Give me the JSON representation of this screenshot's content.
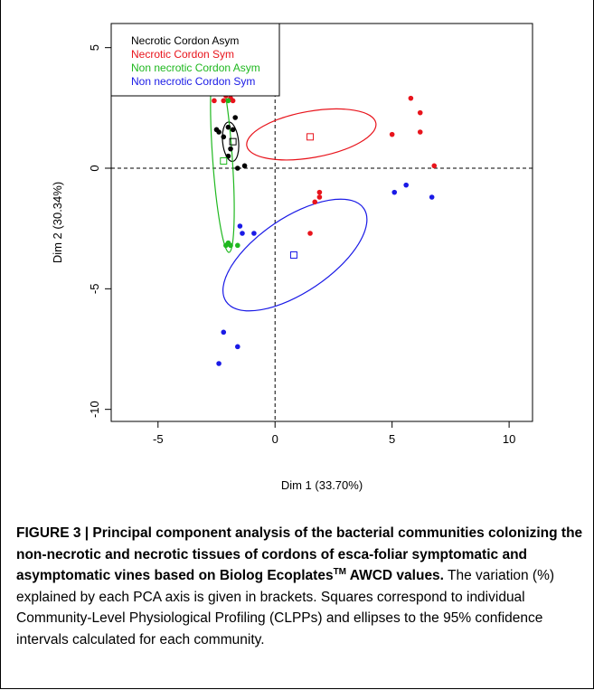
{
  "chart_data": {
    "type": "scatter",
    "title": "",
    "xlabel": "Dim 1 (33.70%)",
    "ylabel": "Dim 2 (30.34%)",
    "xlim": [
      -7,
      11
    ],
    "ylim": [
      -10.5,
      6
    ],
    "xticks": [
      -5,
      0,
      5,
      10
    ],
    "yticks": [
      5,
      0,
      -5,
      -10
    ],
    "tick_labels_x": [
      "-5",
      "0",
      "5",
      "10"
    ],
    "tick_labels_y": [
      "5",
      "0",
      "-5",
      "-10"
    ],
    "reference_lines": {
      "x": 0,
      "y": 0,
      "style": "dashed"
    },
    "legend_position": "top-left",
    "series": [
      {
        "name": "Necrotic Cordon Asym",
        "color": "#000000",
        "points": [
          [
            -2.5,
            1.6
          ],
          [
            -2.4,
            1.5
          ],
          [
            -2.0,
            1.7
          ],
          [
            -1.8,
            1.6
          ],
          [
            -1.7,
            2.1
          ],
          [
            -2.2,
            1.3
          ],
          [
            -1.9,
            0.8
          ],
          [
            -2.0,
            0.5
          ],
          [
            -1.6,
            0.0
          ],
          [
            -1.3,
            0.1
          ]
        ],
        "centroid": [
          -1.8,
          1.1
        ],
        "ellipse": {
          "cx": -1.9,
          "cy": 1.1,
          "rx": 0.34,
          "ry": 0.82,
          "angle_deg": -6
        }
      },
      {
        "name": "Necrotic Cordon Sym",
        "color": "#e8141c",
        "points": [
          [
            -2.8,
            3.3
          ],
          [
            -2.6,
            3.1
          ],
          [
            -2.6,
            2.8
          ],
          [
            -2.2,
            2.8
          ],
          [
            -2.1,
            3.0
          ],
          [
            -1.9,
            2.9
          ],
          [
            -1.8,
            2.8
          ],
          [
            5.8,
            2.9
          ],
          [
            6.2,
            2.3
          ],
          [
            6.2,
            1.5
          ],
          [
            5.0,
            1.4
          ],
          [
            6.8,
            0.1
          ],
          [
            1.9,
            -1.0
          ],
          [
            1.9,
            -1.2
          ],
          [
            1.7,
            -1.4
          ],
          [
            1.5,
            -2.7
          ]
        ],
        "centroid": [
          1.5,
          1.3
        ],
        "ellipse": {
          "cx": 1.55,
          "cy": 1.4,
          "rx": 2.8,
          "ry": 0.96,
          "angle_deg": -10
        }
      },
      {
        "name": "Non necrotic Cordon Asym",
        "color": "#1fb81f",
        "points": [
          [
            -3.1,
            4.4
          ],
          [
            -2.7,
            3.7
          ],
          [
            -2.4,
            3.3
          ],
          [
            -2.0,
            2.8
          ],
          [
            -2.0,
            -3.1
          ],
          [
            -1.9,
            -3.2
          ],
          [
            -2.1,
            -3.2
          ],
          [
            -1.6,
            -3.2
          ]
        ],
        "centroid": [
          -2.2,
          0.3
        ],
        "ellipse": {
          "cx": -2.25,
          "cy": 0.45,
          "rx": 0.42,
          "ry": 3.95,
          "angle_deg": -4
        }
      },
      {
        "name": "Non necrotic Cordon Sym",
        "color": "#1a1ae6",
        "points": [
          [
            -2.5,
            3.7
          ],
          [
            -1.5,
            -2.4
          ],
          [
            -1.4,
            -2.7
          ],
          [
            -0.9,
            -2.7
          ],
          [
            5.1,
            -1.0
          ],
          [
            5.6,
            -0.7
          ],
          [
            6.7,
            -1.2
          ],
          [
            -2.2,
            -6.8
          ],
          [
            -1.6,
            -7.4
          ],
          [
            -2.4,
            -8.1
          ]
        ],
        "centroid": [
          0.8,
          -3.6
        ],
        "ellipse": {
          "cx": 0.85,
          "cy": -3.6,
          "rx": 3.55,
          "ry": 1.55,
          "angle_deg": -34
        }
      }
    ]
  },
  "caption": {
    "bold_lead": "FIGURE 3 | Principal component analysis of the bacterial communities colonizing the non-necrotic and necrotic tissues of cordons of esca-foliar symptomatic and asymptomatic vines based on Biolog Ecoplates",
    "bold_sup": "TM",
    "bold_tail": " AWCD values.",
    "text": " The variation (%) explained by each PCA axis is given in brackets. Squares correspond to individual Community-Level Physiological Profiling (CLPPs) and ellipses to the 95% confidence intervals calculated for each community."
  }
}
